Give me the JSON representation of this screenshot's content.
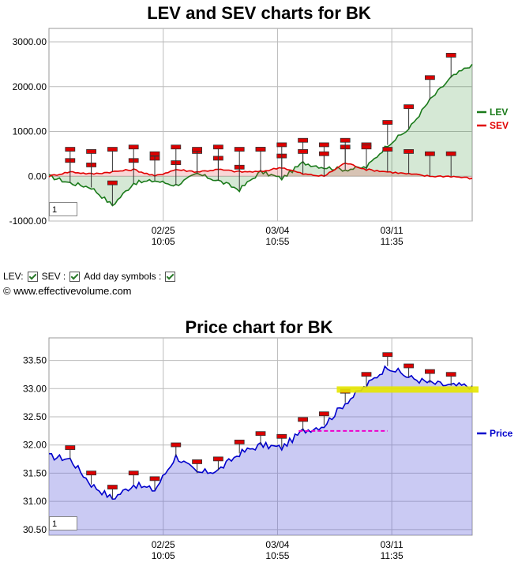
{
  "lev_chart": {
    "title": "LEV and SEV charts for BK",
    "y_ticks": [
      "3000.00",
      "2000.00",
      "1000.00",
      "0.00",
      "-1000.00"
    ],
    "x_ticks": [
      {
        "date": "02/25",
        "time": "10:05"
      },
      {
        "date": "03/04",
        "time": "10:55"
      },
      {
        "date": "03/11",
        "time": "11:35"
      }
    ],
    "legend": [
      {
        "name": "LEV",
        "color": "#1a7a1a"
      },
      {
        "name": "SEV",
        "color": "#e00000"
      }
    ],
    "zoom_value": "1"
  },
  "controls": {
    "lev_label": "LEV:",
    "sev_label": "SEV :",
    "day_symbols_label": "Add day symbols :"
  },
  "copyright": "© www.effectivevolume.com",
  "price_chart": {
    "title": "Price chart for BK",
    "y_ticks": [
      "33.50",
      "33.00",
      "32.50",
      "32.00",
      "31.50",
      "31.00",
      "30.50"
    ],
    "x_ticks": [
      {
        "date": "02/25",
        "time": "10:05"
      },
      {
        "date": "03/04",
        "time": "10:55"
      },
      {
        "date": "03/11",
        "time": "11:35"
      }
    ],
    "legend": [
      {
        "name": "Price",
        "color": "#0000cc"
      }
    ],
    "zoom_value": "1"
  },
  "chart_data": [
    {
      "type": "line",
      "title": "LEV and SEV charts for BK",
      "ylim": [
        -1000,
        3300
      ],
      "x": [
        0,
        5,
        10,
        15,
        20,
        25,
        30,
        35,
        40,
        45,
        50,
        55,
        60,
        65,
        70,
        75,
        80,
        85,
        90,
        95,
        100
      ],
      "x_tick_labels": [
        "02/25 10:05",
        "03/04 10:55",
        "03/11 11:35"
      ],
      "series": [
        {
          "name": "LEV",
          "color": "#1a7a1a",
          "values": [
            0,
            -150,
            -250,
            -650,
            -150,
            -100,
            -200,
            50,
            -100,
            -300,
            100,
            -50,
            300,
            200,
            150,
            200,
            700,
            1050,
            1700,
            2200,
            2500
          ]
        },
        {
          "name": "SEV",
          "color": "#e00000",
          "values": [
            0,
            100,
            50,
            100,
            150,
            0,
            150,
            100,
            150,
            100,
            100,
            200,
            50,
            0,
            300,
            150,
            100,
            50,
            0,
            0,
            -50
          ]
        }
      ],
      "grid": true,
      "legend_position": "right"
    },
    {
      "type": "area",
      "title": "Price chart for BK",
      "ylim": [
        30.4,
        33.9
      ],
      "x": [
        0,
        5,
        10,
        15,
        20,
        25,
        30,
        35,
        40,
        45,
        50,
        55,
        60,
        65,
        70,
        75,
        80,
        85,
        90,
        95,
        100
      ],
      "x_tick_labels": [
        "02/25 10:05",
        "03/04 10:55",
        "03/11 11:35"
      ],
      "series": [
        {
          "name": "Price",
          "color": "#0000cc",
          "values": [
            31.8,
            31.75,
            31.3,
            31.05,
            31.3,
            31.2,
            31.8,
            31.5,
            31.55,
            31.85,
            32.0,
            31.95,
            32.25,
            32.35,
            32.75,
            33.05,
            33.4,
            33.2,
            33.1,
            33.05,
            33.05
          ]
        }
      ],
      "grid": true,
      "legend_position": "right"
    }
  ]
}
